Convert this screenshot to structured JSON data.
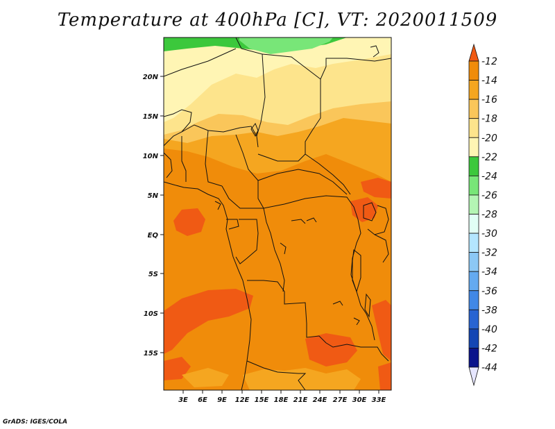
{
  "title": "Temperature at 400hPa [C], VT: 2020011509",
  "footer": "GrADS: IGES/COLA",
  "map": {
    "lon_ticks": [
      "3E",
      "6E",
      "9E",
      "12E",
      "15E",
      "18E",
      "21E",
      "24E",
      "27E",
      "30E",
      "33E"
    ],
    "lat_ticks": [
      "20N",
      "15N",
      "10N",
      "5N",
      "EQ",
      "5S",
      "10S",
      "15S"
    ]
  },
  "colorbar": {
    "labels": [
      "-12",
      "-14",
      "-16",
      "-18",
      "-20",
      "-22",
      "-24",
      "-26",
      "-28",
      "-30",
      "-32",
      "-34",
      "-36",
      "-38",
      "-40",
      "-42",
      "-44"
    ],
    "colors": [
      "#f05a14",
      "#f08c0a",
      "#f5a620",
      "#fac65a",
      "#fde48c",
      "#fff5b4",
      "#3cc83c",
      "#78e678",
      "#b4f5b4",
      "#e1fff5",
      "#b4e6ff",
      "#8cc8f5",
      "#64aaf0",
      "#4188e6",
      "#2864d2",
      "#1446b4",
      "#0a148c",
      "#e6e6ff"
    ]
  },
  "legend_colors": {
    "c12": "#f05a14",
    "c14": "#f08c0a",
    "c16": "#f5a620",
    "c18": "#fac65a",
    "c20": "#fde48c",
    "c22": "#fff5b4",
    "c24": "#3cc83c",
    "c26": "#78e678"
  }
}
